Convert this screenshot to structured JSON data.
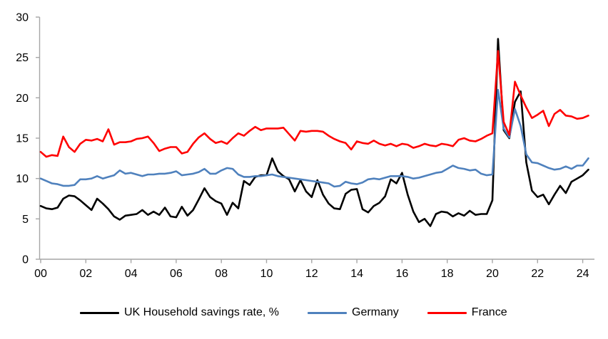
{
  "chart_data": {
    "type": "line",
    "title": "",
    "xlabel": "",
    "ylabel": "",
    "ylim": [
      0,
      30
    ],
    "yticks": [
      0,
      5,
      10,
      15,
      20,
      25,
      30
    ],
    "x_start_year": 2000,
    "x_step_years": 0.25,
    "x_span_years": 24.25,
    "xtick_interval_years": 2,
    "xtick_labels": [
      "00",
      "02",
      "04",
      "06",
      "08",
      "10",
      "12",
      "14",
      "16",
      "18",
      "20",
      "22",
      "24"
    ],
    "grid": false,
    "legend_position": "bottom",
    "axis_color": "#a6a6a6",
    "text_color": "#000000",
    "series": [
      {
        "name": "UK Household savings rate, %",
        "color": "#000000",
        "values": [
          6.6,
          6.3,
          6.2,
          6.4,
          7.5,
          7.9,
          7.8,
          7.3,
          6.7,
          6.1,
          7.5,
          6.9,
          6.2,
          5.3,
          4.9,
          5.4,
          5.5,
          5.6,
          6.1,
          5.5,
          5.9,
          5.5,
          6.4,
          5.3,
          5.2,
          6.5,
          5.4,
          6.1,
          7.4,
          8.8,
          7.7,
          7.2,
          6.9,
          5.5,
          7.0,
          6.3,
          9.7,
          9.2,
          10.2,
          10.4,
          10.4,
          12.5,
          10.9,
          10.3,
          9.9,
          8.4,
          9.8,
          8.4,
          7.7,
          9.8,
          8.0,
          6.9,
          6.3,
          6.2,
          8.1,
          8.6,
          8.7,
          6.2,
          5.8,
          6.6,
          7.0,
          7.8,
          9.9,
          9.4,
          10.7,
          8.0,
          5.9,
          4.6,
          5.0,
          4.1,
          5.6,
          5.9,
          5.8,
          5.3,
          5.7,
          5.4,
          6.0,
          5.5,
          5.6,
          5.6,
          7.3,
          27.3,
          16.0,
          15.0,
          19.5,
          20.8,
          12.0,
          8.5,
          7.7,
          8.0,
          6.8,
          8.0,
          9.1,
          8.2,
          9.6,
          10.0,
          10.4,
          11.1
        ]
      },
      {
        "name": "Germany",
        "color": "#4f81bd",
        "values": [
          10.0,
          9.7,
          9.4,
          9.3,
          9.1,
          9.1,
          9.2,
          9.9,
          9.9,
          10.0,
          10.3,
          10.0,
          10.2,
          10.4,
          11.0,
          10.6,
          10.7,
          10.5,
          10.3,
          10.5,
          10.5,
          10.6,
          10.6,
          10.7,
          10.9,
          10.4,
          10.5,
          10.6,
          10.8,
          11.2,
          10.6,
          10.6,
          11.0,
          11.3,
          11.2,
          10.5,
          10.2,
          10.2,
          10.3,
          10.3,
          10.4,
          10.5,
          10.3,
          10.2,
          10.1,
          10.0,
          9.9,
          9.8,
          9.7,
          9.6,
          9.5,
          9.4,
          9.0,
          9.1,
          9.6,
          9.4,
          9.3,
          9.5,
          9.9,
          10.0,
          9.9,
          10.1,
          10.3,
          10.3,
          10.3,
          10.2,
          10.0,
          10.1,
          10.3,
          10.5,
          10.7,
          10.8,
          11.2,
          11.6,
          11.3,
          11.2,
          11.0,
          11.1,
          10.6,
          10.4,
          10.5,
          21.0,
          16.2,
          15.1,
          18.6,
          16.5,
          13.0,
          12.0,
          11.9,
          11.6,
          11.3,
          11.1,
          11.2,
          11.5,
          11.2,
          11.6,
          11.6,
          12.5
        ]
      },
      {
        "name": "France",
        "color": "#ff0000",
        "values": [
          13.3,
          12.7,
          12.9,
          12.8,
          15.2,
          13.9,
          13.3,
          14.3,
          14.8,
          14.7,
          14.9,
          14.6,
          16.1,
          14.2,
          14.5,
          14.5,
          14.6,
          14.9,
          15.0,
          15.2,
          14.4,
          13.4,
          13.7,
          13.9,
          13.9,
          13.1,
          13.3,
          14.3,
          15.1,
          15.6,
          14.9,
          14.4,
          14.6,
          14.3,
          15.0,
          15.6,
          15.3,
          15.9,
          16.4,
          16.0,
          16.2,
          16.2,
          16.2,
          16.3,
          15.5,
          14.7,
          15.9,
          15.8,
          15.9,
          15.9,
          15.8,
          15.3,
          14.9,
          14.6,
          14.4,
          13.6,
          14.6,
          14.4,
          14.3,
          14.7,
          14.3,
          14.1,
          14.3,
          14.0,
          14.3,
          14.2,
          13.8,
          14.0,
          14.3,
          14.1,
          14.0,
          14.3,
          14.2,
          14.0,
          14.8,
          15.0,
          14.7,
          14.6,
          14.9,
          15.3,
          15.6,
          25.8,
          17.0,
          15.4,
          22.0,
          20.3,
          18.8,
          17.5,
          17.9,
          18.4,
          16.5,
          18.0,
          18.5,
          17.8,
          17.7,
          17.4,
          17.5,
          17.8
        ]
      }
    ]
  },
  "legend": {
    "items": [
      {
        "label": "UK Household savings rate, %"
      },
      {
        "label": "Germany"
      },
      {
        "label": "France"
      }
    ]
  }
}
